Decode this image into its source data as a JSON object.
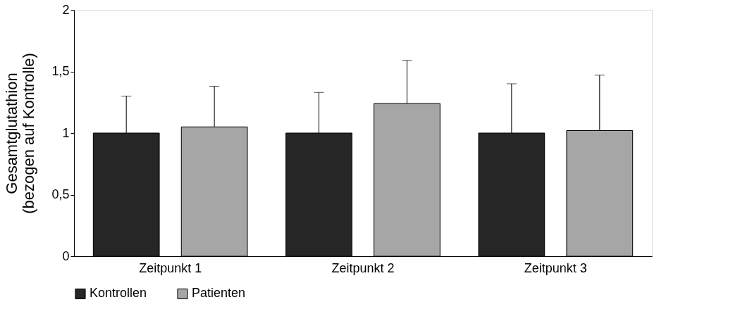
{
  "chart_data": {
    "type": "bar",
    "ylabel": "Gesamtglutathion\n(bezogen auf Kontrolle)",
    "categories": [
      "Zeitpunkt 1",
      "Zeitpunkt 2",
      "Zeitpunkt 3"
    ],
    "series": [
      {
        "name": "Kontrollen",
        "color": "#262626",
        "values": [
          1.0,
          1.0,
          1.0
        ],
        "errors": [
          [
            1.0,
            1.3
          ],
          [
            1.0,
            1.33
          ],
          [
            1.0,
            1.4
          ]
        ]
      },
      {
        "name": "Patienten",
        "color": "#a6a6a6",
        "values": [
          1.05,
          1.24,
          1.02
        ],
        "errors": [
          [
            1.05,
            1.38
          ],
          [
            1.24,
            1.59
          ],
          [
            1.02,
            1.47
          ]
        ]
      }
    ],
    "ylim": [
      0,
      2
    ],
    "yticks": [
      0,
      {
        "value": 0.5,
        "label": "0,5"
      },
      1,
      {
        "value": 1.5,
        "label": "1,5"
      },
      2
    ],
    "grid": false,
    "legend": "bottom"
  }
}
